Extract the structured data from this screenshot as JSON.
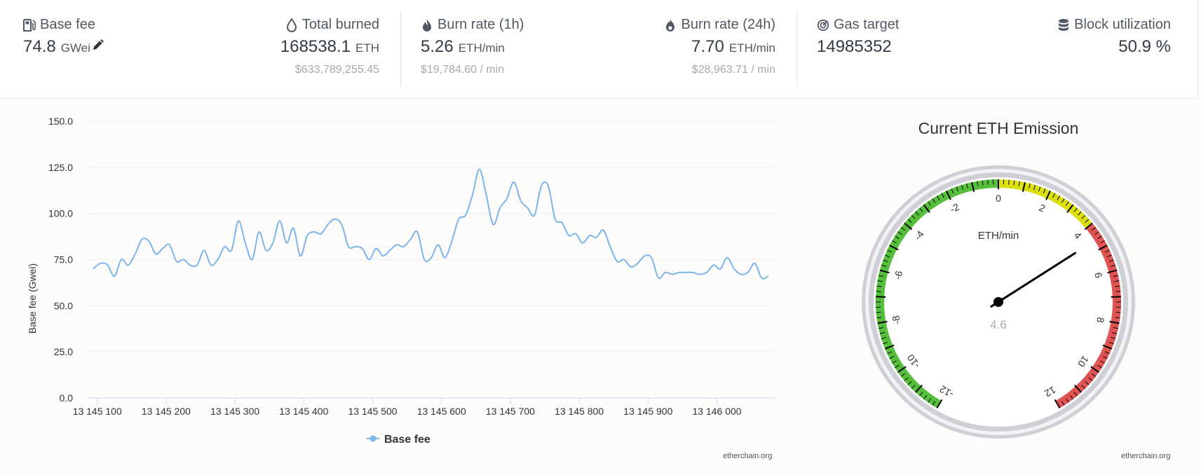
{
  "stats": {
    "base_fee": {
      "label": "Base fee",
      "value": "74.8",
      "unit": "GWei"
    },
    "total_burned": {
      "label": "Total burned",
      "value": "168538.1",
      "unit": "ETH",
      "usd": "$633,789,255.45"
    },
    "burn_rate_1h": {
      "label": "Burn rate (1h)",
      "value": "5.26",
      "unit": "ETH/min",
      "usd": "$19,784.60 / min"
    },
    "burn_rate_24h": {
      "label": "Burn rate (24h)",
      "value": "7.70",
      "unit": "ETH/min",
      "usd": "$28,963.71 / min"
    },
    "gas_target": {
      "label": "Gas target",
      "value": "14985352"
    },
    "block_utilization": {
      "label": "Block utilization",
      "value": "50.9 %"
    }
  },
  "chart_data": {
    "type": "line",
    "ylabel": "Base fee (Gwei)",
    "ylim": [
      0,
      150
    ],
    "yticks": [
      "0.0",
      "25.0",
      "50.0",
      "75.0",
      "100.0",
      "125.0",
      "150.0"
    ],
    "xlim": [
      13145085,
      13146085
    ],
    "xticks": [
      "13 145 100",
      "13 145 200",
      "13 145 300",
      "13 145 400",
      "13 145 500",
      "13 145 600",
      "13 145 700",
      "13 145 800",
      "13 145 900",
      "13 146 000"
    ],
    "legend": "top-bottom-center",
    "series": [
      {
        "name": "Base fee",
        "color": "#7cb5ec",
        "x": [
          13145094,
          13145105,
          13145115,
          13145125,
          13145135,
          13145145,
          13145155,
          13145165,
          13145175,
          13145185,
          13145195,
          13145205,
          13145215,
          13145225,
          13145235,
          13145245,
          13145255,
          13145265,
          13145275,
          13145285,
          13145295,
          13145305,
          13145315,
          13145325,
          13145335,
          13145345,
          13145355,
          13145365,
          13145375,
          13145385,
          13145395,
          13145405,
          13145415,
          13145425,
          13145435,
          13145445,
          13145455,
          13145465,
          13145475,
          13145485,
          13145495,
          13145505,
          13145515,
          13145525,
          13145535,
          13145545,
          13145555,
          13145565,
          13145575,
          13145585,
          13145595,
          13145605,
          13145615,
          13145625,
          13145635,
          13145645,
          13145655,
          13145665,
          13145675,
          13145685,
          13145695,
          13145705,
          13145715,
          13145725,
          13145735,
          13145745,
          13145755,
          13145765,
          13145775,
          13145785,
          13145795,
          13145805,
          13145815,
          13145825,
          13145835,
          13145845,
          13145855,
          13145865,
          13145875,
          13145885,
          13145895,
          13145905,
          13145915,
          13145925,
          13145935,
          13145945,
          13145955,
          13145965,
          13145975,
          13145985,
          13145995,
          13146005,
          13146015,
          13146025,
          13146035,
          13146045,
          13146055,
          13146065,
          13146075
        ],
        "values": [
          70,
          73,
          72,
          66,
          75,
          72,
          78,
          86,
          85,
          78,
          81,
          83,
          74,
          75,
          72,
          72,
          80,
          72,
          75,
          82,
          80,
          96,
          84,
          75,
          90,
          80,
          84,
          96,
          84,
          92,
          77,
          88,
          90,
          89,
          94,
          97,
          94,
          82,
          82,
          81,
          75,
          81,
          77,
          80,
          83,
          82,
          86,
          90,
          75,
          76,
          83,
          76,
          85,
          97,
          99,
          110,
          124,
          110,
          94,
          103,
          108,
          117,
          107,
          103,
          99,
          115,
          115,
          97,
          95,
          88,
          89,
          84,
          88,
          87,
          91,
          82,
          74,
          75,
          71,
          73,
          77,
          76,
          65,
          68,
          67,
          68,
          68,
          68,
          67,
          68,
          72,
          70,
          76,
          70,
          67,
          68,
          73,
          65,
          66
        ]
      }
    ]
  },
  "gauge": {
    "title": "Current ETH Emission",
    "unit": "ETH/min",
    "value": 4.6,
    "display": "4.6",
    "min": -12,
    "max": 12,
    "labels": [
      "-12",
      "-10",
      "-8",
      "-6",
      "-4",
      "-2",
      "0",
      "2",
      "4",
      "6",
      "8",
      "10",
      "12"
    ],
    "bands": [
      {
        "from": -12,
        "to": 0,
        "color": "#55bf3b"
      },
      {
        "from": 0,
        "to": 4,
        "color": "#dddf0d"
      },
      {
        "from": 4,
        "to": 12,
        "color": "#df5353"
      }
    ]
  },
  "branding": {
    "chart": "etherchain.org",
    "gauge": "etherchain.org"
  }
}
